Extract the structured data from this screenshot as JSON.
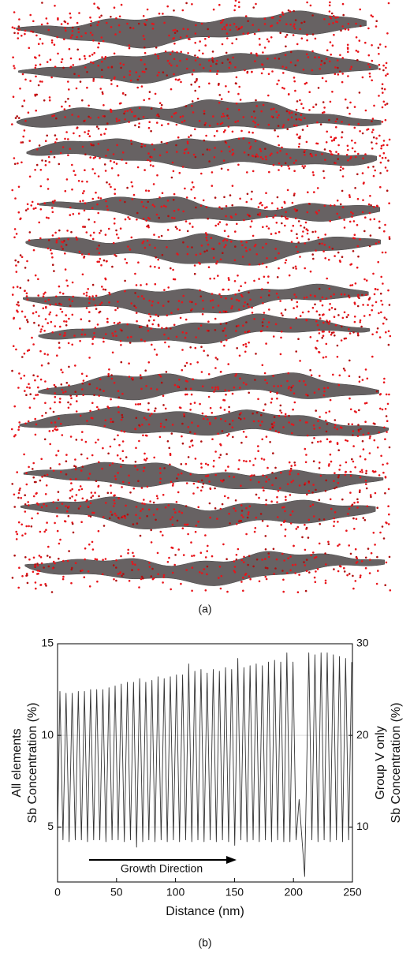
{
  "panel_a": {
    "label": "(a)"
  },
  "chart_data": {
    "type": "line",
    "label": "(b)",
    "xlabel": "Distance (nm)",
    "ylabel": [
      "All elements",
      "Sb Concentration (%)"
    ],
    "y2label": [
      "Group V only",
      "Sb Concentration (%)"
    ],
    "annotation": "Growth Direction",
    "xlim": [
      0,
      250
    ],
    "xticks": [
      0,
      50,
      100,
      150,
      200,
      250
    ],
    "ylim": [
      2,
      15
    ],
    "yticks": [
      5,
      10,
      15
    ],
    "y2lim": [
      4,
      30
    ],
    "y2ticks": [
      10,
      20,
      30
    ],
    "grid": true,
    "x": [
      0,
      2.0,
      4.6,
      7.2,
      9.8,
      12.4,
      15.0,
      17.6,
      20.2,
      22.8,
      25.4,
      28.0,
      30.6,
      33.2,
      35.8,
      38.4,
      41.0,
      43.6,
      46.2,
      48.8,
      51.4,
      54.0,
      56.6,
      59.2,
      61.8,
      64.4,
      67.0,
      69.6,
      72.2,
      74.8,
      77.4,
      80.0,
      82.6,
      85.2,
      87.8,
      90.4,
      93.0,
      95.6,
      98.2,
      100.8,
      103.4,
      106.0,
      108.6,
      111.2,
      113.8,
      116.4,
      119.0,
      121.6,
      124.2,
      126.8,
      129.4,
      132.0,
      134.6,
      137.2,
      139.8,
      142.4,
      145.0,
      147.6,
      150.2,
      152.8,
      155.4,
      158.0,
      160.6,
      163.2,
      165.8,
      168.4,
      171.0,
      173.6,
      176.2,
      178.8,
      181.4,
      184.0,
      186.6,
      189.2,
      191.8,
      194.4,
      197.0,
      199.6,
      202.2,
      204.8,
      209.5,
      213.0,
      215.6,
      218.2,
      220.8,
      223.4,
      226.0,
      228.6,
      231.2,
      233.8,
      236.4,
      239.0,
      241.6,
      244.2,
      246.8,
      249.4
    ],
    "series": [
      {
        "color": "#333333",
        "values": [
          4.6,
          12.4,
          4.3,
          12.3,
          4.2,
          12.3,
          4.3,
          12.4,
          4.3,
          12.4,
          4.2,
          12.5,
          4.3,
          12.5,
          4.3,
          12.5,
          4.2,
          12.6,
          4.3,
          12.7,
          4.3,
          12.8,
          4.2,
          12.9,
          4.3,
          12.9,
          3.9,
          13.1,
          4.2,
          12.9,
          4.3,
          13.0,
          4.2,
          13.2,
          4.3,
          13.1,
          4.2,
          13.2,
          4.3,
          13.3,
          4.2,
          13.3,
          4.3,
          13.9,
          4.2,
          13.5,
          4.3,
          13.6,
          4.2,
          13.4,
          4.3,
          13.6,
          4.2,
          13.5,
          4.3,
          13.7,
          4.2,
          13.6,
          4.0,
          14.2,
          4.3,
          13.7,
          4.2,
          13.8,
          4.3,
          13.9,
          4.2,
          13.8,
          4.3,
          14.0,
          4.2,
          14.1,
          4.3,
          14.0,
          4.2,
          14.5,
          4.2,
          14.0,
          4.3,
          6.5,
          2.3,
          14.5,
          4.3,
          14.4,
          4.2,
          14.5,
          4.3,
          14.5,
          4.2,
          14.4,
          4.3,
          14.3,
          4.2,
          14.2,
          4.3,
          14.0
        ]
      }
    ]
  }
}
